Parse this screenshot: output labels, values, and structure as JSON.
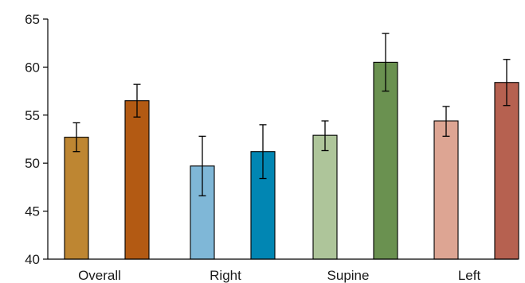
{
  "chart_data": {
    "type": "bar",
    "categories": [
      "Overall",
      "Right",
      "Supine",
      "Left"
    ],
    "title": "",
    "xlabel": "",
    "ylabel": "",
    "ylim": [
      40,
      65
    ],
    "yticks": [
      "40",
      "45",
      "50",
      "55",
      "60",
      "65"
    ],
    "grid": false,
    "legend": "none",
    "groups": [
      {
        "category": "Overall",
        "bars": [
          {
            "value": 52.7,
            "err_low": 51.2,
            "err_high": 54.2,
            "color": "#BE8632"
          },
          {
            "value": 56.5,
            "err_low": 54.8,
            "err_high": 58.2,
            "color": "#B35A13"
          }
        ]
      },
      {
        "category": "Right",
        "bars": [
          {
            "value": 49.7,
            "err_low": 46.6,
            "err_high": 52.8,
            "color": "#7FB7D7"
          },
          {
            "value": 51.2,
            "err_low": 48.4,
            "err_high": 54.0,
            "color": "#0186B3"
          }
        ]
      },
      {
        "category": "Supine",
        "bars": [
          {
            "value": 52.9,
            "err_low": 51.3,
            "err_high": 54.4,
            "color": "#AEC59A"
          },
          {
            "value": 60.5,
            "err_low": 57.5,
            "err_high": 63.5,
            "color": "#6A9150"
          }
        ]
      },
      {
        "category": "Left",
        "bars": [
          {
            "value": 54.4,
            "err_low": 52.8,
            "err_high": 55.9,
            "color": "#DDA593"
          },
          {
            "value": 58.4,
            "err_low": 56.0,
            "err_high": 60.8,
            "color": "#B66150"
          }
        ]
      }
    ]
  }
}
